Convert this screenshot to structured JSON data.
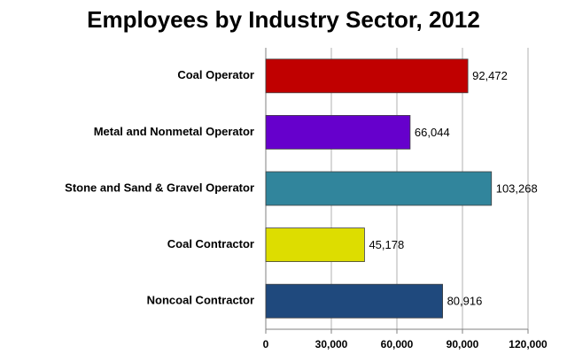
{
  "chart_data": {
    "type": "hbar",
    "title": "Employees by Industry Sector, 2012",
    "categories": [
      "Coal Operator",
      "Metal and Nonmetal Operator",
      "Stone and Sand & Gravel Operator",
      "Coal Contractor",
      "Noncoal Contractor"
    ],
    "values": [
      92472,
      66044,
      103268,
      45178,
      80916
    ],
    "value_labels": [
      "92,472",
      "66,044",
      "103,268",
      "45,178",
      "80,916"
    ],
    "colors": [
      "#c00000",
      "#6600cc",
      "#31859c",
      "#dddd00",
      "#1f497d"
    ],
    "xlim": [
      0,
      120000
    ],
    "xticks": [
      0,
      {
        "value": 30000,
        "label": "30,000"
      },
      {
        "value": 60000,
        "label": "60,000"
      },
      {
        "value": 90000,
        "label": "90,000"
      },
      {
        "value": 120000,
        "label": "120,000"
      }
    ],
    "grid": true
  }
}
